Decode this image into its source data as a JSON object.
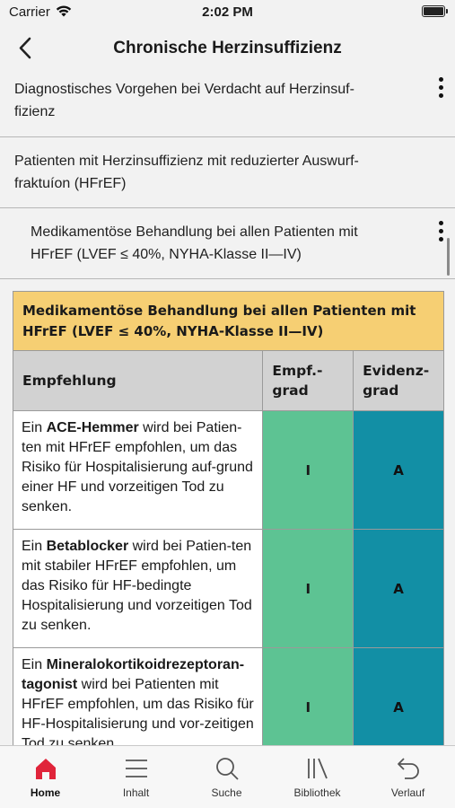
{
  "status_bar": {
    "carrier": "Carrier",
    "time": "2:02 PM"
  },
  "nav": {
    "title": "Chronische Herzinsuffizienz"
  },
  "breadcrumbs": [
    {
      "lines": [
        "Diagnostisches Vorgehen bei Verdacht auf Herzinsuf-",
        "fizienz"
      ]
    },
    {
      "lines": [
        "Patienten mit Herzinsuffizienz mit reduzierter Auswurf-",
        "fraktuíon (HFrEF)"
      ]
    },
    {
      "lines": [
        "Medikamentöse Behandlung bei allen Patienten mit",
        "HFrEF (LVEF ≤ 40%, NYHA-Klasse II—IV)"
      ]
    }
  ],
  "table": {
    "heading_lines": [
      "Medikamentöse Behandlung bei allen Patienten mit",
      "HFrEF (LVEF ≤ 40%, NYHA-Klasse II—IV)"
    ],
    "columns": {
      "recommendation": "Empfehlung",
      "grade": [
        "Empf.-",
        "grad"
      ],
      "evidence": [
        "Evidenz-",
        "grad"
      ]
    },
    "rows": [
      {
        "prefix": "Ein ",
        "bold": "ACE-Hemmer",
        "rest": " wird bei Patien-ten mit HFrEF empfohlen, um das Risiko für Hospitalisierung auf-grund einer HF und vorzeitigen Tod zu senken.",
        "grade": "I",
        "evidence": "A"
      },
      {
        "prefix": "Ein ",
        "bold": "Betablocker",
        "rest": " wird bei Patien-ten mit stabiler HFrEF empfohlen, um das Risiko für HF-bedingte Hospitalisierung und vorzeitigen Tod zu senken.",
        "grade": "I",
        "evidence": "A"
      },
      {
        "prefix": "Ein ",
        "bold": "Mineralokortikoidrezeptoran-tagonist",
        "rest": " wird bei Patienten mit HFrEF empfohlen, um das Risiko für HF-Hospitalisierung und vor-zeitigen Tod zu senken.",
        "grade": "I",
        "evidence": "A"
      }
    ]
  },
  "tabs": [
    {
      "label": "Home",
      "icon": "home-icon",
      "active": true
    },
    {
      "label": "Inhalt",
      "icon": "menu-icon"
    },
    {
      "label": "Suche",
      "icon": "search-icon"
    },
    {
      "label": "Bibliothek",
      "icon": "library-icon"
    },
    {
      "label": "Verlauf",
      "icon": "history-icon"
    }
  ],
  "colors": {
    "heading_bg": "#f6cf73",
    "grade_bg": "#5dc393",
    "evidence_bg": "#128fa5",
    "active_tab": "#e0243a"
  }
}
